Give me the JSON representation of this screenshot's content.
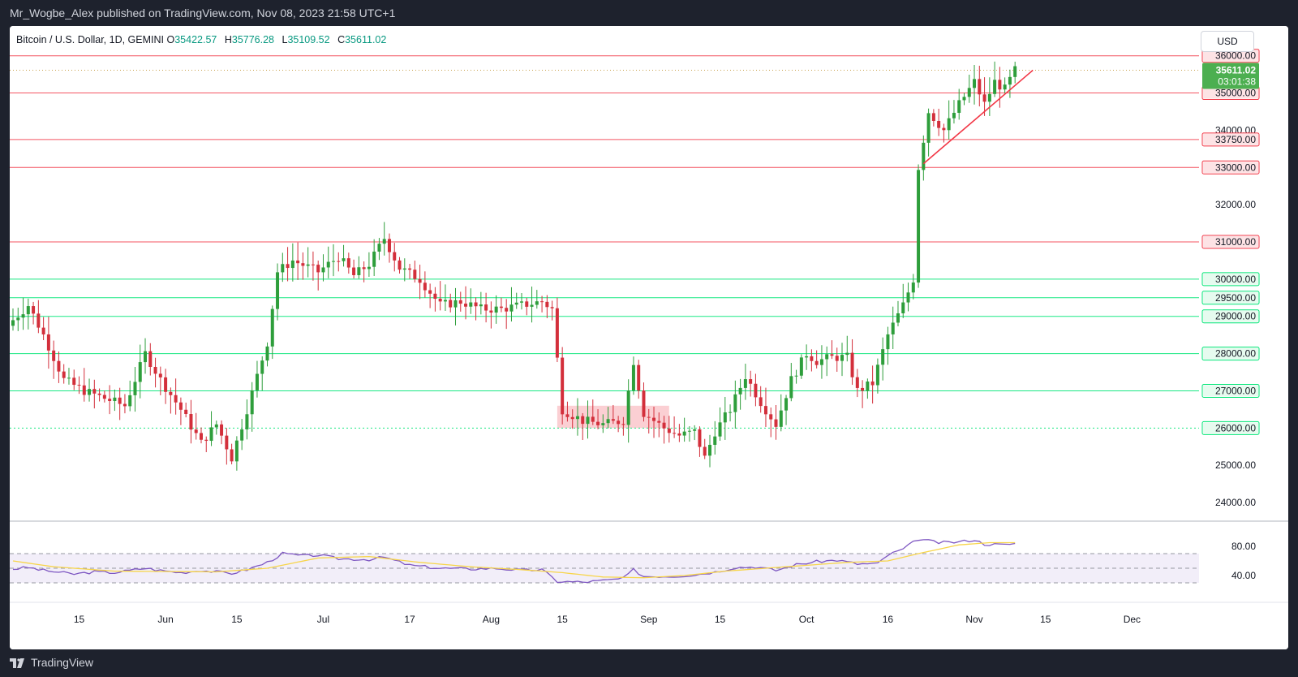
{
  "publisher": {
    "text": "Mr_Wogbe_Alex published on TradingView.com, Nov 08, 2023 21:58 UTC+1"
  },
  "header": {
    "symbol": "Bitcoin / U.S. Dollar, 1D, GEMINI",
    "open_label": "O",
    "open": "35422.57",
    "high_label": "H",
    "high": "35776.28",
    "low_label": "L",
    "low": "35109.52",
    "close_label": "C",
    "close": "35611.02"
  },
  "toolbar": {
    "currency": "USD"
  },
  "footer": {
    "brand": "TradingView"
  },
  "colors": {
    "up": "#2e9e3b",
    "down": "#d32f3b",
    "resistance": "#f23645",
    "support": "#00e676",
    "rsi_line": "#7e57c2",
    "rsi_ma": "#f7d54a",
    "rsi_band": "#ede7f6",
    "price_tag": "#4caf50"
  },
  "chart_data": {
    "type": "candlestick",
    "price_axis": {
      "ylim": [
        23500,
        36800
      ],
      "ticks": [
        24000,
        25000,
        32000,
        34000
      ],
      "tick_labels": [
        "24000.00",
        "25000.00",
        "32000.00",
        "34000.00"
      ]
    },
    "time_axis": {
      "labels": [
        "15",
        "Jun",
        "15",
        "Jul",
        "17",
        "Aug",
        "15",
        "Sep",
        "15",
        "Oct",
        "16",
        "Nov",
        "15",
        "Dec"
      ],
      "label_bar_index": [
        13,
        30,
        44,
        61,
        78,
        94,
        108,
        125,
        139,
        156,
        172,
        189,
        203,
        220
      ]
    },
    "levels": [
      {
        "value": 36000,
        "label": "36000.00",
        "kind": "resistance"
      },
      {
        "value": 35000,
        "label": "35000.00",
        "kind": "resistance"
      },
      {
        "value": 33750,
        "label": "33750.00",
        "kind": "resistance"
      },
      {
        "value": 33000,
        "label": "33000.00",
        "kind": "resistance"
      },
      {
        "value": 31000,
        "label": "31000.00",
        "kind": "resistance"
      },
      {
        "value": 30000,
        "label": "30000.00",
        "kind": "support"
      },
      {
        "value": 29500,
        "label": "29500.00",
        "kind": "support"
      },
      {
        "value": 29000,
        "label": "29000.00",
        "kind": "support"
      },
      {
        "value": 28000,
        "label": "28000.00",
        "kind": "support"
      },
      {
        "value": 27000,
        "label": "27000.00",
        "kind": "support"
      },
      {
        "value": 26000,
        "label": "26000.00",
        "kind": "support"
      }
    ],
    "last_price": {
      "value": 35611.02,
      "label": "35611.02",
      "countdown": "03:01:38"
    },
    "demand_zone": {
      "from_bar": 107,
      "to_bar": 129,
      "low": 26000,
      "high": 26600
    },
    "trendline": {
      "from_bar": 179,
      "from_price": 33100,
      "to_bar": 197,
      "to_price": 35350
    },
    "series": [
      {
        "name": "Bitcoin / U.S. Dollar",
        "anchors": [
          [
            0,
            28900
          ],
          [
            3,
            29300
          ],
          [
            6,
            28500
          ],
          [
            10,
            27300
          ],
          [
            14,
            27000
          ],
          [
            18,
            26800
          ],
          [
            22,
            26600
          ],
          [
            26,
            28000
          ],
          [
            29,
            27300
          ],
          [
            33,
            26500
          ],
          [
            37,
            25600
          ],
          [
            40,
            26100
          ],
          [
            43,
            25200
          ],
          [
            46,
            26500
          ],
          [
            50,
            28300
          ],
          [
            52,
            30200
          ],
          [
            55,
            30500
          ],
          [
            60,
            30200
          ],
          [
            64,
            30600
          ],
          [
            67,
            30100
          ],
          [
            70,
            30400
          ],
          [
            73,
            31100
          ],
          [
            76,
            30300
          ],
          [
            80,
            30000
          ],
          [
            84,
            29300
          ],
          [
            88,
            29400
          ],
          [
            92,
            29200
          ],
          [
            96,
            29200
          ],
          [
            100,
            29300
          ],
          [
            104,
            29400
          ],
          [
            106,
            29200
          ],
          [
            108,
            26500
          ],
          [
            112,
            26200
          ],
          [
            116,
            26100
          ],
          [
            120,
            26200
          ],
          [
            122,
            27800
          ],
          [
            124,
            26400
          ],
          [
            128,
            26000
          ],
          [
            131,
            25800
          ],
          [
            134,
            25900
          ],
          [
            136,
            25200
          ],
          [
            138,
            25900
          ],
          [
            141,
            26500
          ],
          [
            144,
            27400
          ],
          [
            147,
            26700
          ],
          [
            150,
            26100
          ],
          [
            153,
            27300
          ],
          [
            156,
            28000
          ],
          [
            158,
            27800
          ],
          [
            161,
            27900
          ],
          [
            164,
            27900
          ],
          [
            166,
            27000
          ],
          [
            169,
            27200
          ],
          [
            172,
            28500
          ],
          [
            175,
            29300
          ],
          [
            177,
            30000
          ],
          [
            178,
            33000
          ],
          [
            180,
            34500
          ],
          [
            183,
            34000
          ],
          [
            186,
            34700
          ],
          [
            189,
            35300
          ],
          [
            191,
            34700
          ],
          [
            193,
            35300
          ],
          [
            195,
            35100
          ],
          [
            197,
            35611
          ]
        ]
      },
      {
        "name": "RSI",
        "anchors": [
          [
            0,
            49
          ],
          [
            3,
            51
          ],
          [
            6,
            47
          ],
          [
            12,
            42
          ],
          [
            16,
            45
          ],
          [
            20,
            44
          ],
          [
            26,
            50
          ],
          [
            29,
            47
          ],
          [
            33,
            44
          ],
          [
            37,
            47
          ],
          [
            40,
            45
          ],
          [
            43,
            43
          ],
          [
            46,
            48
          ],
          [
            50,
            58
          ],
          [
            53,
            70
          ],
          [
            57,
            67
          ],
          [
            60,
            68
          ],
          [
            64,
            63
          ],
          [
            70,
            62
          ],
          [
            73,
            65
          ],
          [
            78,
            54
          ],
          [
            84,
            50
          ],
          [
            90,
            49
          ],
          [
            95,
            50
          ],
          [
            100,
            47
          ],
          [
            104,
            48
          ],
          [
            107,
            32
          ],
          [
            112,
            31
          ],
          [
            116,
            33
          ],
          [
            120,
            36
          ],
          [
            122,
            48
          ],
          [
            124,
            39
          ],
          [
            130,
            39
          ],
          [
            134,
            41
          ],
          [
            138,
            45
          ],
          [
            142,
            51
          ],
          [
            146,
            52
          ],
          [
            150,
            47
          ],
          [
            154,
            55
          ],
          [
            158,
            59
          ],
          [
            162,
            61
          ],
          [
            166,
            56
          ],
          [
            170,
            56
          ],
          [
            172,
            68
          ],
          [
            175,
            76
          ],
          [
            178,
            90
          ],
          [
            182,
            85
          ],
          [
            186,
            86
          ],
          [
            189,
            89
          ],
          [
            191,
            83
          ],
          [
            195,
            82
          ],
          [
            197,
            84
          ]
        ]
      },
      {
        "name": "RSI MA",
        "anchors": [
          [
            0,
            60
          ],
          [
            8,
            52
          ],
          [
            20,
            46
          ],
          [
            40,
            45
          ],
          [
            50,
            50
          ],
          [
            60,
            64
          ],
          [
            70,
            66
          ],
          [
            80,
            58
          ],
          [
            90,
            52
          ],
          [
            100,
            48
          ],
          [
            108,
            44
          ],
          [
            116,
            38
          ],
          [
            124,
            37
          ],
          [
            132,
            40
          ],
          [
            140,
            46
          ],
          [
            148,
            50
          ],
          [
            156,
            54
          ],
          [
            164,
            58
          ],
          [
            172,
            60
          ],
          [
            178,
            70
          ],
          [
            186,
            82
          ],
          [
            192,
            85
          ],
          [
            197,
            85
          ]
        ]
      }
    ]
  }
}
